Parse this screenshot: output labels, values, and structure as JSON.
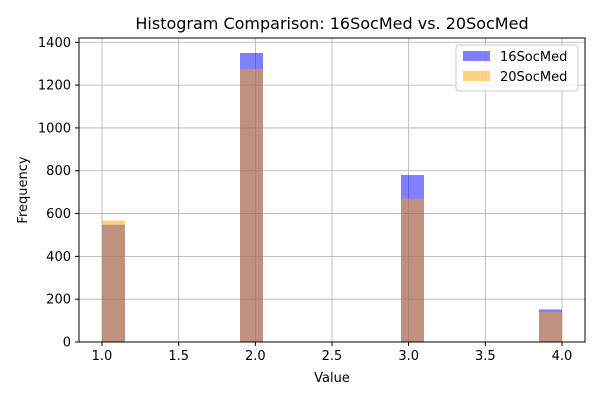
{
  "chart_data": {
    "type": "bar",
    "title": "Histogram Comparison: 16SocMed vs. 20SocMed",
    "xlabel": "Value",
    "ylabel": "Frequency",
    "xlim": [
      0.85,
      4.15
    ],
    "ylim": [
      0,
      1420
    ],
    "xticks": [
      1.0,
      1.5,
      2.0,
      2.5,
      3.0,
      3.5,
      4.0
    ],
    "xtick_labels": [
      "1.0",
      "1.5",
      "2.0",
      "2.5",
      "3.0",
      "3.5",
      "4.0"
    ],
    "yticks": [
      0,
      200,
      400,
      600,
      800,
      1000,
      1200,
      1400
    ],
    "ytick_labels": [
      "0",
      "200",
      "400",
      "600",
      "800",
      "1000",
      "1200",
      "1400"
    ],
    "grid": true,
    "legend_position": "top-right",
    "bin_width": 0.15,
    "series": [
      {
        "name": "16SocMed",
        "color": "#0000ff",
        "alpha": 0.5,
        "bins": [
          {
            "x": 1.0,
            "value": 548
          },
          {
            "x": 1.9,
            "value": 1350
          },
          {
            "x": 2.95,
            "value": 780
          },
          {
            "x": 3.85,
            "value": 152
          }
        ]
      },
      {
        "name": "20SocMed",
        "color": "#ffa500",
        "alpha": 0.5,
        "bins": [
          {
            "x": 1.0,
            "value": 567
          },
          {
            "x": 1.9,
            "value": 1275
          },
          {
            "x": 2.95,
            "value": 670
          },
          {
            "x": 3.85,
            "value": 140
          }
        ]
      }
    ]
  }
}
